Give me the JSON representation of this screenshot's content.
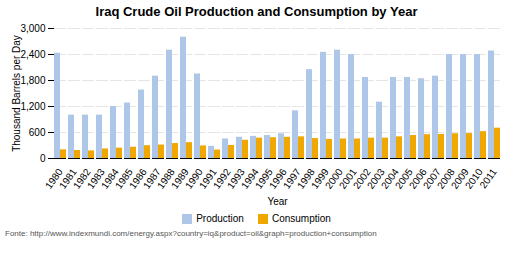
{
  "chart_data": {
    "type": "bar",
    "title": "Iraq Crude Oil Production and Consumption by Year",
    "xlabel": "Year",
    "ylabel": "Thousand Barrels per Day",
    "categories": [
      "1980",
      "1981",
      "1982",
      "1983",
      "1984",
      "1985",
      "1986",
      "1987",
      "1988",
      "1989",
      "1990",
      "1991",
      "1992",
      "1993",
      "1994",
      "1995",
      "1996",
      "1997",
      "1998",
      "1999",
      "2000",
      "2001",
      "2002",
      "2003",
      "2004",
      "2005",
      "2006",
      "2007",
      "2008",
      "2009",
      "2010",
      "2011"
    ],
    "series": [
      {
        "name": "Production",
        "color": "#aec6e8",
        "values": [
          2430,
          1000,
          1000,
          1000,
          1200,
          1280,
          1580,
          1900,
          2500,
          2800,
          1950,
          280,
          450,
          490,
          510,
          530,
          570,
          1100,
          2050,
          2450,
          2500,
          2400,
          1870,
          1300,
          1870,
          1870,
          1840,
          1900,
          2400,
          2400,
          2400,
          2480
        ]
      },
      {
        "name": "Consumption",
        "color": "#f0a800",
        "values": [
          200,
          185,
          175,
          220,
          240,
          260,
          295,
          310,
          345,
          365,
          290,
          195,
          300,
          420,
          470,
          480,
          490,
          500,
          460,
          440,
          450,
          450,
          470,
          470,
          500,
          530,
          550,
          555,
          570,
          575,
          620,
          700
        ]
      }
    ],
    "ylim": [
      0,
      3000
    ],
    "yticks": [
      0,
      600,
      {
        "value": 1200,
        "label": "1,200"
      },
      {
        "value": 1800,
        "label": "1,800"
      },
      {
        "value": 2400,
        "label": "2,400"
      },
      {
        "value": 3000,
        "label": "3,000"
      }
    ],
    "grid": true,
    "legend": "bottom",
    "annotations": [
      "Fonte: http://www.indexmundi.com/energy.aspx?country=iq&product=oil&graph=production+consumption"
    ]
  }
}
